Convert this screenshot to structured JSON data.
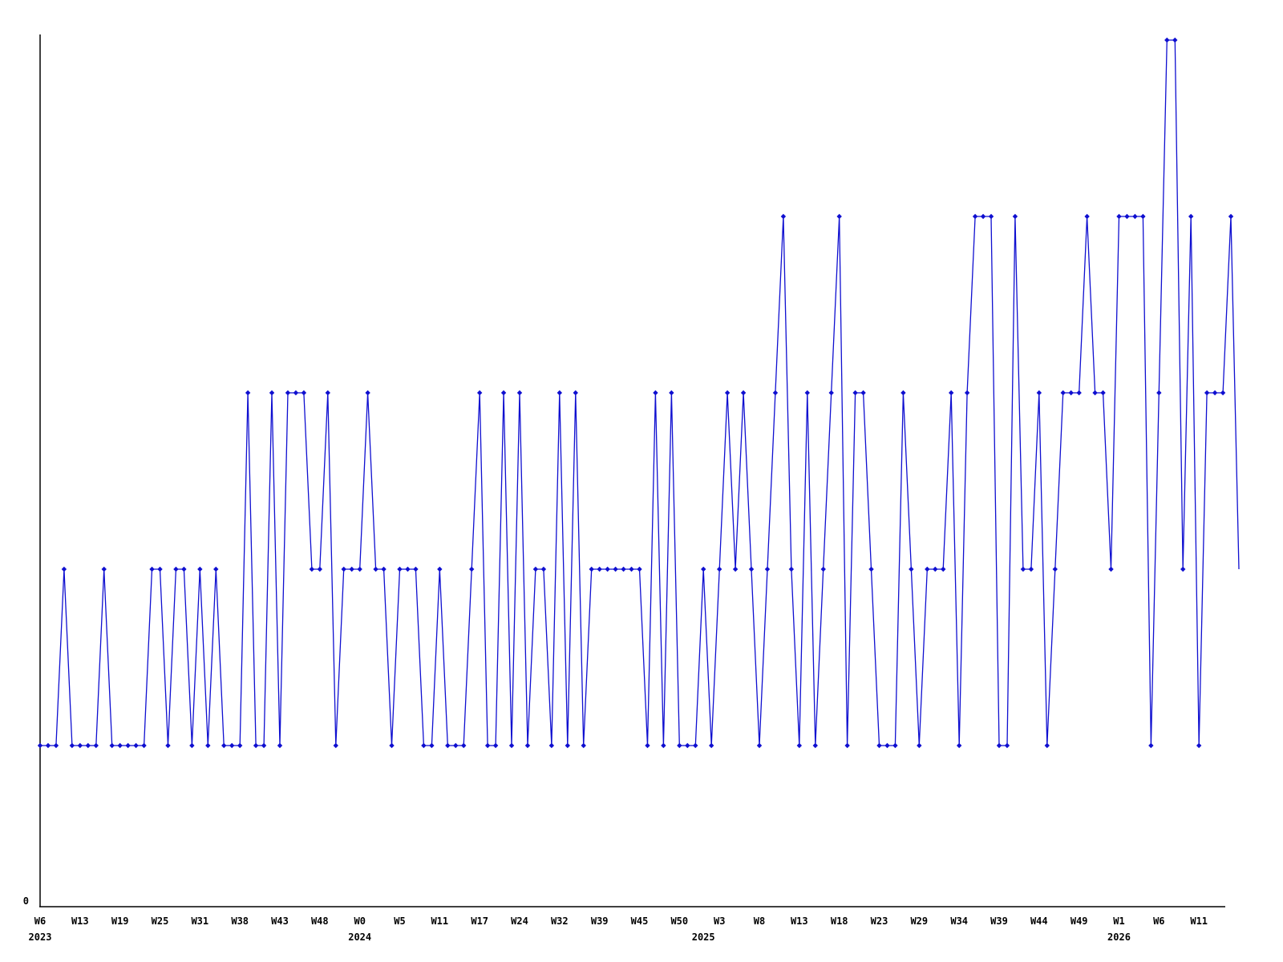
{
  "chart_data": {
    "type": "line",
    "title": "",
    "description": "Weekly activity series; one point per recorded week, values quantized to integer levels",
    "line_color": "#0f0fd0",
    "marker": "diamond",
    "grid": false,
    "legend": "none",
    "ylim": [
      0,
      5.1
    ],
    "y_tick_labels": [
      "0"
    ],
    "x_tick_every": 5,
    "x_tick_labels": [
      "W6",
      "W13",
      "W19",
      "W25",
      "W31",
      "W38",
      "W43",
      "W48",
      "W0",
      "W5",
      "W11",
      "W17",
      "W24",
      "W32",
      "W39",
      "W45",
      "W50",
      "W3",
      "W8",
      "W13",
      "W18",
      "W23",
      "W29",
      "W34",
      "W39",
      "W44",
      "W49",
      "W1",
      "W6",
      "W11"
    ],
    "x_year_labels": [
      {
        "text": "2023",
        "index": 0
      },
      {
        "text": "2024",
        "index": 40
      },
      {
        "text": "2025",
        "index": 83
      },
      {
        "text": "2026",
        "index": 135
      }
    ],
    "values": [
      1,
      1,
      1,
      2,
      1,
      1,
      1,
      1,
      2,
      1,
      1,
      1,
      1,
      1,
      2,
      2,
      1,
      2,
      2,
      1,
      2,
      1,
      2,
      1,
      1,
      1,
      3,
      1,
      1,
      3,
      1,
      3,
      3,
      3,
      2,
      2,
      3,
      1,
      2,
      2,
      2,
      3,
      2,
      2,
      1,
      2,
      2,
      2,
      1,
      1,
      2,
      1,
      1,
      1,
      2,
      3,
      1,
      1,
      3,
      1,
      3,
      1,
      2,
      2,
      1,
      3,
      1,
      3,
      1,
      2,
      2,
      2,
      2,
      2,
      2,
      2,
      1,
      3,
      1,
      3,
      1,
      1,
      1,
      2,
      1,
      2,
      3,
      2,
      3,
      2,
      1,
      2,
      3,
      4,
      2,
      1,
      3,
      1,
      2,
      3,
      4,
      1,
      3,
      3,
      2,
      1,
      1,
      1,
      3,
      2,
      1,
      2,
      2,
      2,
      3,
      1,
      3,
      4,
      4,
      4,
      1,
      1,
      4,
      2,
      2,
      3,
      1,
      2,
      3,
      3,
      3,
      4,
      3,
      3,
      2,
      4,
      4,
      4,
      4,
      1,
      3,
      5,
      5,
      2,
      4,
      1,
      3,
      3,
      3,
      4,
      2
    ]
  }
}
